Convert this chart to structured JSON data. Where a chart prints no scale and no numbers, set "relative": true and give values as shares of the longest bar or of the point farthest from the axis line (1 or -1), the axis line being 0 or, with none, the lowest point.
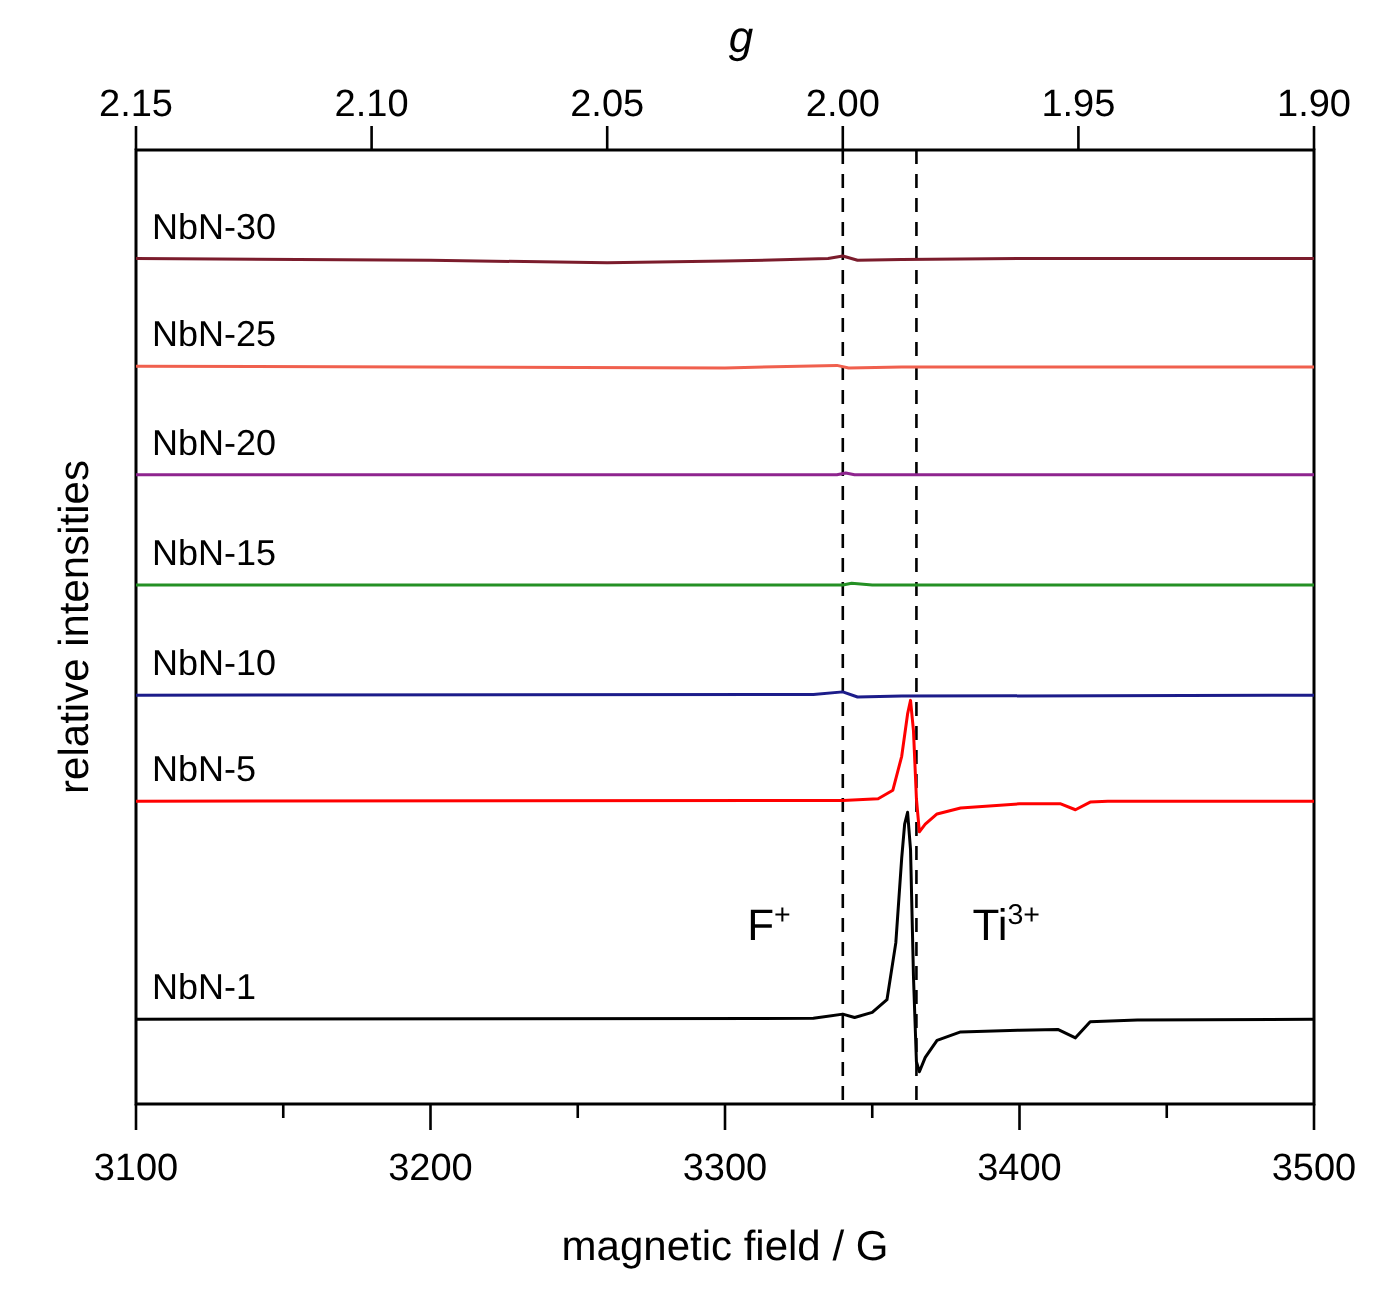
{
  "chart_data": {
    "type": "line",
    "relative": true,
    "xlabel": "magnetic field / G",
    "ylabel": "relative intensities",
    "x2label": "g",
    "xlim": [
      3100,
      3500
    ],
    "xticks": [
      3100,
      {
        "value": 3150,
        "label": null
      },
      3200,
      {
        "value": 3250,
        "label": null
      },
      3300,
      {
        "value": 3350,
        "label": null
      },
      3400,
      {
        "value": 3450,
        "label": null
      },
      3500
    ],
    "x2lim": [
      2.15,
      1.9
    ],
    "x2ticks": [
      2.15,
      {
        "value": 2.1,
        "label": "2.10"
      },
      2.05,
      {
        "value": 2.0,
        "label": "2.00"
      },
      1.95,
      {
        "value": 1.9,
        "label": "1.90"
      }
    ],
    "ref_lines": [
      {
        "axis": "x",
        "value": 3340,
        "label": "F$^{+}$",
        "line_style": "dashed",
        "color": "#000000"
      },
      {
        "axis": "x",
        "value": 3365,
        "label": "Ti$^{3+}$",
        "line_style": "dashed",
        "color": "#000000"
      }
    ],
    "legend": false,
    "marker": "none",
    "line_style": "solid",
    "series": [
      {
        "name": "NbN-30",
        "color": "#7b1c2c",
        "x": [
          3100,
          3200,
          3260,
          3300,
          3335,
          3340,
          3345,
          3360,
          3400,
          3500
        ],
        "values": [
          0.997,
          0.995,
          0.992,
          0.994,
          0.997,
          1.0,
          0.995,
          0.996,
          0.997,
          0.997
        ]
      },
      {
        "name": "NbN-25",
        "color": "#f0604e",
        "x": [
          3100,
          3300,
          3338,
          3342,
          3360,
          3500
        ],
        "values": [
          0.87,
          0.868,
          0.871,
          0.868,
          0.869,
          0.869
        ]
      },
      {
        "name": "NbN-20",
        "color": "#8e248e",
        "x": [
          3100,
          3338,
          3341,
          3344,
          3500
        ],
        "values": [
          0.742,
          0.742,
          0.744,
          0.742,
          0.742
        ]
      },
      {
        "name": "NbN-15",
        "color": "#249024",
        "x": [
          3100,
          3340,
          3343,
          3350,
          3500
        ],
        "values": [
          0.612,
          0.612,
          0.614,
          0.612,
          0.612
        ]
      },
      {
        "name": "NbN-10",
        "color": "#1c1c8a",
        "x": [
          3100,
          3330,
          3340,
          3345,
          3360,
          3500
        ],
        "values": [
          0.482,
          0.483,
          0.486,
          0.48,
          0.481,
          0.482
        ]
      },
      {
        "name": "NbN-5",
        "color": "#ff0000",
        "x": [
          3100,
          3340,
          3352,
          3357,
          3360,
          3362,
          3363,
          3364,
          3365,
          3366,
          3368,
          3372,
          3380,
          3400,
          3414,
          3419,
          3424,
          3430,
          3500
        ],
        "values": [
          0.357,
          0.358,
          0.36,
          0.37,
          0.41,
          0.46,
          0.476,
          0.44,
          0.36,
          0.321,
          0.33,
          0.342,
          0.349,
          0.354,
          0.354,
          0.347,
          0.356,
          0.357,
          0.357
        ]
      },
      {
        "name": "NbN-1",
        "color": "#000000",
        "x": [
          3100,
          3330,
          3340,
          3344,
          3350,
          3355,
          3358,
          3360,
          3361,
          3362,
          3363,
          3364,
          3365,
          3366,
          3368,
          3372,
          3380,
          3400,
          3413,
          3419,
          3424,
          3440,
          3500
        ],
        "values": [
          0.1,
          0.101,
          0.106,
          0.102,
          0.108,
          0.123,
          0.19,
          0.29,
          0.33,
          0.344,
          0.3,
          0.15,
          0.05,
          0.038,
          0.055,
          0.075,
          0.085,
          0.087,
          0.088,
          0.078,
          0.097,
          0.099,
          0.1
        ]
      }
    ]
  }
}
